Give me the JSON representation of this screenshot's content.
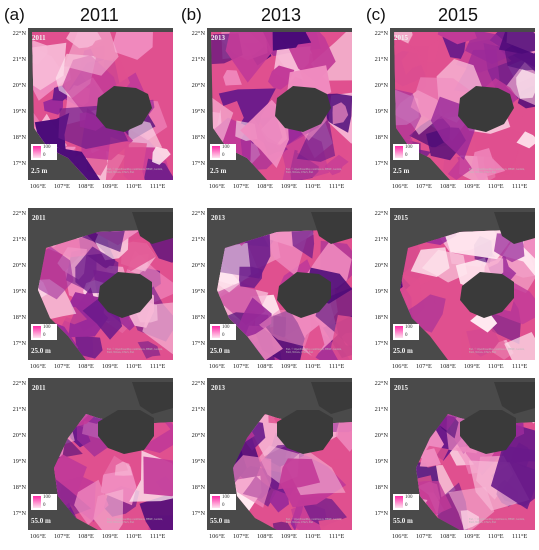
{
  "columns": [
    {
      "letter": "(a)",
      "year": "2011"
    },
    {
      "letter": "(b)",
      "year": "2013"
    },
    {
      "letter": "(c)",
      "year": "2015"
    }
  ],
  "rows": [
    {
      "depth": "2.5 m"
    },
    {
      "depth": "25.0 m"
    },
    {
      "depth": "55.0 m"
    }
  ],
  "lat_labels": [
    "22°N",
    "21°N",
    "20°N",
    "19°N",
    "18°N",
    "17°N"
  ],
  "lon_labels": [
    "106°E",
    "107°E",
    "108°E",
    "109°E",
    "110°E",
    "111°E"
  ],
  "legend": {
    "high": "100",
    "low": "0"
  },
  "credit": "Esri, © OpenStreetMap contributors, HERE, Garmin, FAO, NOAA, USGS, Esri",
  "colors": {
    "land": "#3a3a3a",
    "background": "#4a4a4a",
    "low": "#ffe8f0",
    "mid": "#e0508f",
    "high": "#6a1a8a",
    "deep": "#4a0a78"
  }
}
